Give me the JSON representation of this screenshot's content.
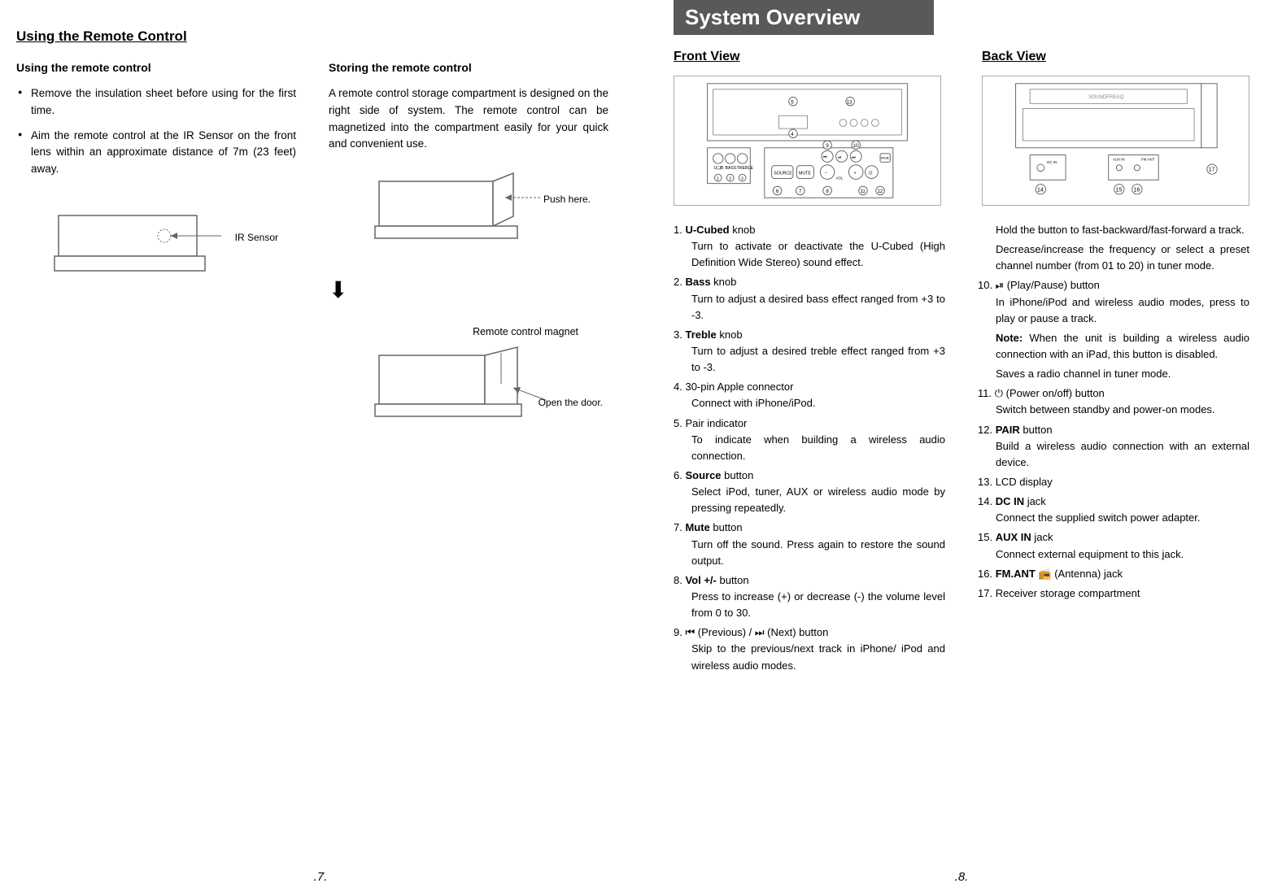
{
  "left": {
    "title": "Using the Remote Control",
    "col1": {
      "heading": "Using the remote control",
      "bullets": [
        "Remove the insulation sheet before using for the first time.",
        "Aim the remote control at the IR Sensor on the front lens within an approximate distance of 7m (23 feet) away."
      ],
      "fig_label": "IR Sensor"
    },
    "col2": {
      "heading": "Storing the remote control",
      "para": "A remote control storage compartment is designed on the right side of system. The remote control can be magnetized into the compartment easily for your quick and convenient use.",
      "fig1_label": "Push here.",
      "fig2_title": "Remote control magnet",
      "fig2_label": "Open the door."
    },
    "page_num": ".7."
  },
  "right": {
    "header": "System Overview",
    "front_title": "Front View",
    "back_title": "Back View",
    "front_diagram_note": "front panel diagram (callouts 1–13)",
    "back_diagram_note": "back panel diagram (callouts 14–17)",
    "items_left": [
      {
        "n": "1.",
        "b": "U-Cubed",
        "t": " knob",
        "d": "Turn to activate or deactivate the U-Cubed (High Definition Wide Stereo) sound effect."
      },
      {
        "n": "2.",
        "b": "Bass",
        "t": " knob",
        "d": "Turn to adjust a desired bass effect ranged from +3 to -3."
      },
      {
        "n": "3.",
        "b": "Treble",
        "t": "  knob",
        "d": "Turn to adjust a desired treble effect ranged from +3 to -3."
      },
      {
        "n": "4.",
        "b": "",
        "t": "30-pin Apple connector",
        "d": "Connect with iPhone/iPod."
      },
      {
        "n": "5.",
        "b": "",
        "t": "Pair indicator",
        "d": "To indicate when building a wireless audio connection."
      },
      {
        "n": "6.",
        "b": "Source",
        "t": " button",
        "d": "Select iPod, tuner, AUX or wireless audio mode by pressing repeatedly."
      },
      {
        "n": "7.",
        "b": "Mute",
        "t": " button",
        "d": "Turn off the sound. Press again to restore the sound output."
      },
      {
        "n": "8.",
        "b": "Vol +/-",
        "t": " button",
        "d": "Press to increase (+) or decrease (-) the volume level from 0 to 30."
      },
      {
        "n": "9.",
        "b": "",
        "t": "⏮ (Previous) / ⏭ (Next) button",
        "d": "Skip to the previous/next track in iPhone/ iPod and wireless audio modes."
      }
    ],
    "items_right": [
      {
        "n": "",
        "b": "",
        "t": "",
        "d": "Hold the button to fast-backward/fast-forward a track."
      },
      {
        "n": "",
        "b": "",
        "t": "",
        "d": "Decrease/increase the frequency or select a preset channel number (from 01 to 20) in tuner mode."
      },
      {
        "n": "10.",
        "b": "",
        "t": "⏯ (Play/Pause) button",
        "d": "In iPhone/iPod and wireless audio modes, press to play or pause a track."
      },
      {
        "n": "",
        "b": "Note:",
        "t": "",
        "d": " When the unit is building a wireless audio connection with an iPad, this button is disabled."
      },
      {
        "n": "",
        "b": "",
        "t": "",
        "d": "Saves a radio channel in tuner mode."
      },
      {
        "n": "11.",
        "b": "",
        "t": "⏻ (Power on/off) button",
        "d": "Switch between standby and power-on modes."
      },
      {
        "n": "12.",
        "b": "PAIR",
        "t": " button",
        "d": "Build a wireless audio connection with an external device."
      },
      {
        "n": "13.",
        "b": "",
        "t": "LCD display",
        "d": ""
      },
      {
        "n": "14.",
        "b": "DC IN",
        "t": " jack",
        "d": "Connect the supplied switch power adapter."
      },
      {
        "n": "15.",
        "b": "AUX IN",
        "t": " jack",
        "d": "Connect external equipment to this jack."
      },
      {
        "n": "16.",
        "b": "FM.ANT ",
        "t": "📻 (Antenna) jack",
        "d": ""
      },
      {
        "n": "17.",
        "b": "",
        "t": "Receiver storage compartment",
        "d": ""
      }
    ],
    "page_num": ".8."
  }
}
